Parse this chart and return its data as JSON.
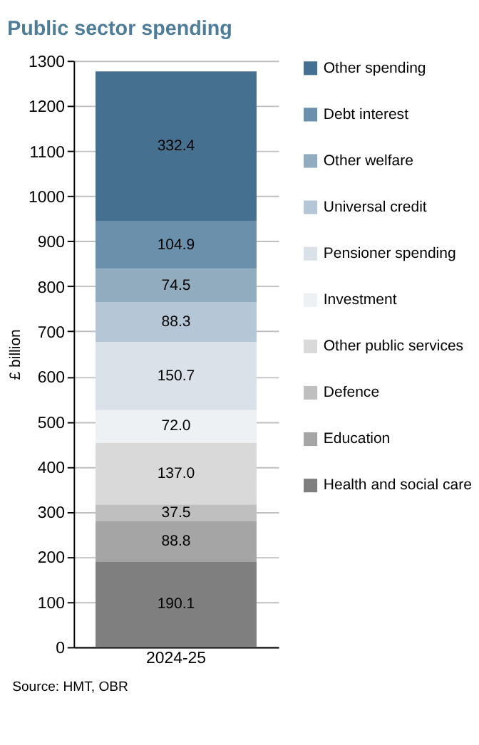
{
  "chart_data": {
    "type": "bar",
    "title": "Public sector spending",
    "ylabel": "£ billion",
    "categories": [
      "2024-25"
    ],
    "stacked": true,
    "series": [
      {
        "name": "Health and social care",
        "color": "#7f7f7f",
        "values": [
          190.1
        ],
        "value_labels": [
          "190.1"
        ]
      },
      {
        "name": "Education",
        "color": "#a5a5a5",
        "values": [
          88.8
        ],
        "value_labels": [
          "88.8"
        ]
      },
      {
        "name": "Defence",
        "color": "#bfbfbf",
        "values": [
          37.5
        ],
        "value_labels": [
          "37.5"
        ]
      },
      {
        "name": "Other public services",
        "color": "#d9d9d9",
        "values": [
          137.0
        ],
        "value_labels": [
          "137.0"
        ]
      },
      {
        "name": "Investment",
        "color": "#eef1f4",
        "values": [
          72.0
        ],
        "value_labels": [
          "72.0"
        ]
      },
      {
        "name": "Pensioner spending",
        "color": "#dae1e8",
        "values": [
          150.7
        ],
        "value_labels": [
          "150.7"
        ]
      },
      {
        "name": "Universal credit",
        "color": "#b5c7d6",
        "values": [
          88.3
        ],
        "value_labels": [
          "88.3"
        ]
      },
      {
        "name": "Other welfare",
        "color": "#91abbf",
        "values": [
          74.5
        ],
        "value_labels": [
          "74.5"
        ]
      },
      {
        "name": "Debt interest",
        "color": "#6b90ab",
        "values": [
          104.9
        ],
        "value_labels": [
          "104.9"
        ]
      },
      {
        "name": "Other spending",
        "color": "#46708f",
        "values": [
          332.4
        ],
        "value_labels": [
          "332.4"
        ]
      }
    ],
    "ylim": [
      0,
      1300
    ],
    "yticks": [
      0,
      100,
      200,
      300,
      400,
      500,
      600,
      700,
      800,
      900,
      1000,
      1100,
      1200,
      1300
    ],
    "grid": "y",
    "legend": "right",
    "annotations": [
      "Source: HMT, OBR"
    ]
  }
}
